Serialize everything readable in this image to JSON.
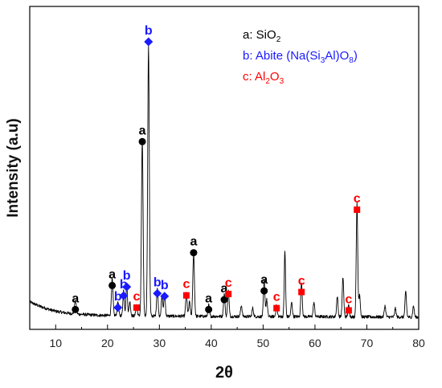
{
  "chart_data": {
    "type": "line",
    "xlabel": "2θ",
    "ylabel": "Intensity (a.u)",
    "xlim": [
      5,
      80
    ],
    "ylim": [
      0,
      100
    ],
    "x_ticks": [
      10,
      20,
      30,
      40,
      50,
      60,
      70,
      80
    ],
    "y_ticks_shown": false,
    "legend_position": "top-right",
    "legend": [
      {
        "letter": "a",
        "sep": ": ",
        "name": "SiO",
        "sub1": "2",
        "mid": "",
        "sub2": "",
        "tail": "",
        "color": "#000000",
        "marker": "circle"
      },
      {
        "letter": "b",
        "sep": ": ",
        "name": "Abite (Na(Si",
        "sub1": "3",
        "mid": "Al)O",
        "sub2": "8",
        "tail": ")",
        "color": "#1a1aff",
        "marker": "diamond"
      },
      {
        "letter": "c",
        "sep": ": ",
        "name": "Al",
        "sub1": "2",
        "mid": "O",
        "sub2": "3",
        "tail": "",
        "color": "#ff0000",
        "marker": "square"
      }
    ],
    "background": [
      [
        5,
        8
      ],
      [
        6,
        7.2
      ],
      [
        7,
        6.4
      ],
      [
        8,
        5.8
      ],
      [
        9,
        5.2
      ],
      [
        10,
        4.7
      ],
      [
        12,
        4.1
      ],
      [
        14,
        3.7
      ],
      [
        16,
        3.5
      ],
      [
        18,
        3.3
      ],
      [
        20,
        3.2
      ],
      [
        25,
        3.1
      ],
      [
        30,
        3.0
      ],
      [
        40,
        2.9
      ],
      [
        50,
        2.8
      ],
      [
        60,
        2.8
      ],
      [
        70,
        2.7
      ],
      [
        80,
        2.6
      ]
    ],
    "peaks": [
      {
        "x": 13.8,
        "height": 4.5,
        "width": 0.25
      },
      {
        "x": 20.9,
        "height": 13,
        "width": 0.22
      },
      {
        "x": 22.0,
        "height": 5,
        "width": 0.2
      },
      {
        "x": 23.1,
        "height": 9,
        "width": 0.2
      },
      {
        "x": 23.7,
        "height": 11,
        "width": 0.2
      },
      {
        "x": 24.3,
        "height": 5,
        "width": 0.2
      },
      {
        "x": 25.6,
        "height": 4,
        "width": 0.2
      },
      {
        "x": 26.7,
        "height": 62,
        "width": 0.22
      },
      {
        "x": 27.9,
        "height": 95,
        "width": 0.22
      },
      {
        "x": 29.6,
        "height": 10,
        "width": 0.2
      },
      {
        "x": 30.5,
        "height": 7,
        "width": 0.2
      },
      {
        "x": 31.0,
        "height": 8,
        "width": 0.2
      },
      {
        "x": 35.2,
        "height": 8,
        "width": 0.2
      },
      {
        "x": 35.8,
        "height": 5,
        "width": 0.2
      },
      {
        "x": 36.6,
        "height": 22,
        "width": 0.22
      },
      {
        "x": 39.5,
        "height": 4,
        "width": 0.2
      },
      {
        "x": 42.5,
        "height": 8,
        "width": 0.2
      },
      {
        "x": 43.3,
        "height": 9,
        "width": 0.2
      },
      {
        "x": 45.8,
        "height": 4,
        "width": 0.2
      },
      {
        "x": 48.0,
        "height": 3,
        "width": 0.2
      },
      {
        "x": 50.2,
        "height": 13,
        "width": 0.2
      },
      {
        "x": 50.7,
        "height": 6,
        "width": 0.2
      },
      {
        "x": 52.6,
        "height": 4,
        "width": 0.2
      },
      {
        "x": 54.2,
        "height": 23,
        "width": 0.18
      },
      {
        "x": 55.5,
        "height": 5,
        "width": 0.2
      },
      {
        "x": 57.4,
        "height": 12,
        "width": 0.2
      },
      {
        "x": 59.8,
        "height": 5,
        "width": 0.2
      },
      {
        "x": 64.3,
        "height": 7,
        "width": 0.2
      },
      {
        "x": 65.4,
        "height": 14,
        "width": 0.2
      },
      {
        "x": 66.5,
        "height": 4,
        "width": 0.2
      },
      {
        "x": 68.1,
        "height": 40,
        "width": 0.2
      },
      {
        "x": 68.6,
        "height": 8,
        "width": 0.2
      },
      {
        "x": 73.5,
        "height": 4,
        "width": 0.2
      },
      {
        "x": 75.5,
        "height": 3,
        "width": 0.2
      },
      {
        "x": 77.5,
        "height": 9,
        "width": 0.2
      },
      {
        "x": 79.0,
        "height": 4,
        "width": 0.2
      }
    ],
    "peak_markers": [
      {
        "x": 13.8,
        "y": 5.3,
        "phase": "a"
      },
      {
        "x": 20.9,
        "y": 13.8,
        "phase": "a"
      },
      {
        "x": 22.0,
        "y": 6.0,
        "phase": "b"
      },
      {
        "x": 23.1,
        "y": 10.2,
        "phase": "b"
      },
      {
        "x": 23.7,
        "y": 13.3,
        "phase": "b"
      },
      {
        "x": 25.6,
        "y": 6.0,
        "phase": "c"
      },
      {
        "x": 26.7,
        "y": 64.7,
        "phase": "a"
      },
      {
        "x": 27.9,
        "y": 100,
        "phase": "b"
      },
      {
        "x": 29.6,
        "y": 11.0,
        "phase": "b"
      },
      {
        "x": 31.0,
        "y": 10.0,
        "phase": "b"
      },
      {
        "x": 35.2,
        "y": 10.3,
        "phase": "c"
      },
      {
        "x": 36.6,
        "y": 25.4,
        "phase": "a"
      },
      {
        "x": 39.5,
        "y": 5.3,
        "phase": "a"
      },
      {
        "x": 42.5,
        "y": 8.8,
        "phase": "a"
      },
      {
        "x": 43.3,
        "y": 10.8,
        "phase": "c"
      },
      {
        "x": 50.2,
        "y": 11.9,
        "phase": "a"
      },
      {
        "x": 52.6,
        "y": 5.8,
        "phase": "c"
      },
      {
        "x": 57.4,
        "y": 11.5,
        "phase": "c"
      },
      {
        "x": 66.5,
        "y": 5.0,
        "phase": "c"
      },
      {
        "x": 68.1,
        "y": 40.6,
        "phase": "c"
      }
    ]
  }
}
